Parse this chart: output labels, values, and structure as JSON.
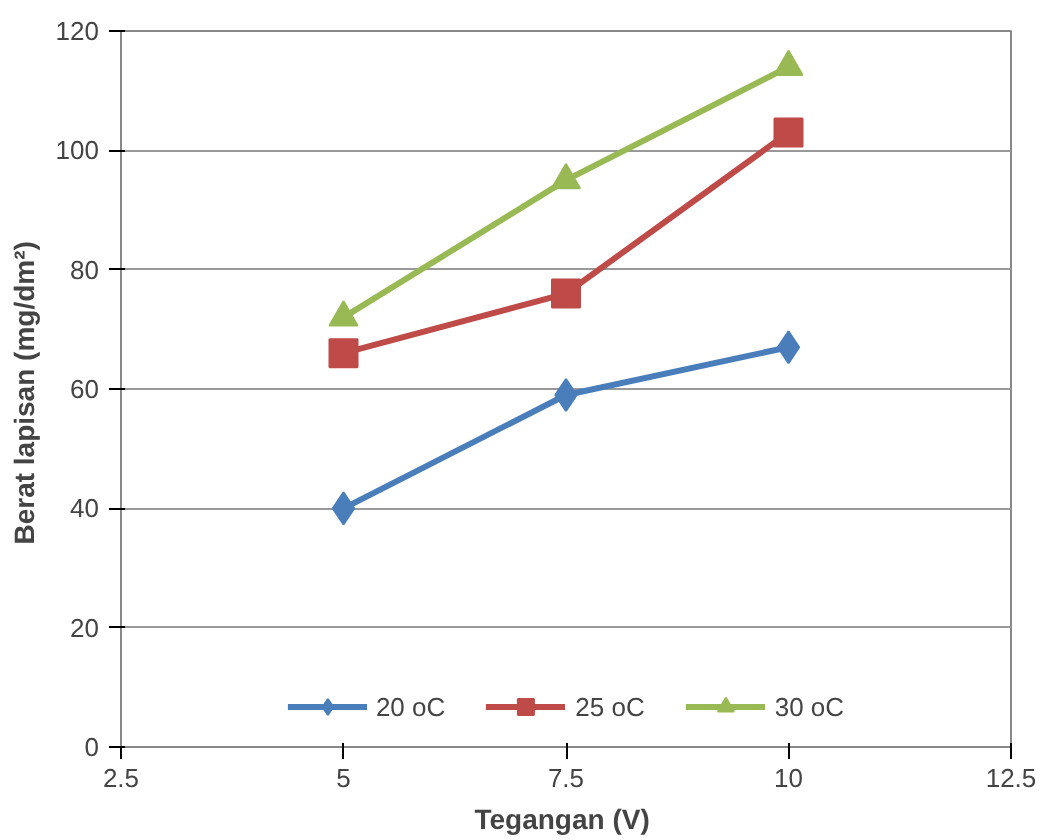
{
  "chart_data": {
    "type": "line",
    "xlabel": "Tegangan  (V)",
    "ylabel": "Berat lapisan  (mg/dm²)",
    "x": [
      5,
      7.5,
      10
    ],
    "series": [
      {
        "name": "20 oC",
        "color": "#4a7ebb",
        "values": [
          40,
          59,
          67
        ],
        "marker": "diamond"
      },
      {
        "name": "25 oC",
        "color": "#be4b48",
        "values": [
          66,
          76,
          103
        ],
        "marker": "square"
      },
      {
        "name": "30 oC",
        "color": "#98b954",
        "values": [
          72,
          95,
          114
        ],
        "marker": "triangle"
      }
    ],
    "xlim": [
      2.5,
      12.5
    ],
    "xticks": [
      2.5,
      5,
      7.5,
      10,
      12.5
    ],
    "ylim": [
      0,
      120
    ],
    "yticks": [
      0,
      20,
      40,
      60,
      80,
      100,
      120
    ],
    "grid": "y",
    "legend": "bottom",
    "line_style": "solid"
  }
}
